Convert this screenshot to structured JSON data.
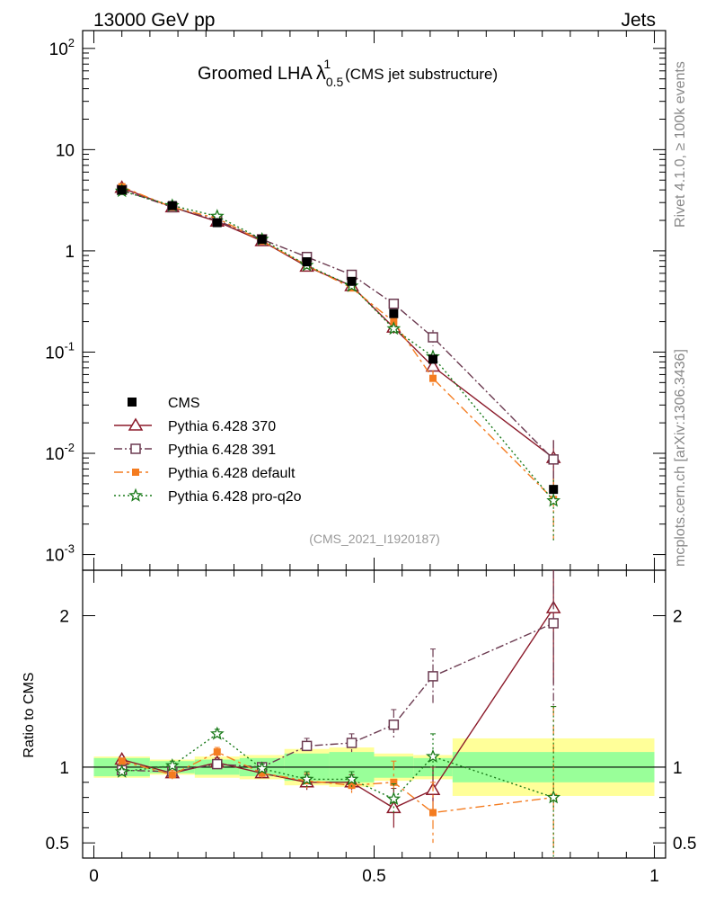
{
  "header": {
    "left": "13000 GeV pp",
    "right": "Jets"
  },
  "side_labels": {
    "top": "Rivet 4.1.0, ≥ 100k events",
    "bottom": "mcplots.cern.ch [arXiv:1306.3436]"
  },
  "chart_data": {
    "type": "scatter",
    "title": "Groomed LHA",
    "title_symbol": "λ",
    "title_sup": "1",
    "title_sub": "0.5",
    "title_suffix": "(CMS jet substructure)",
    "analysis_id": "(CMS_2021_I1920187)",
    "xlabel": "",
    "ylabel_main": "",
    "ylabel_ratio": "Ratio to CMS",
    "xlim": [
      -0.02,
      1.02
    ],
    "ylim_main": [
      0.0007,
      150
    ],
    "ylim_ratio": [
      0.4,
      2.3
    ],
    "x_ticks": [
      {
        "value": 0,
        "label": "0"
      },
      {
        "value": 0.5,
        "label": "0.5"
      },
      {
        "value": 1,
        "label": "1"
      }
    ],
    "y_ticks_main": [
      {
        "value": 0.001,
        "base": "10",
        "exp": "-3"
      },
      {
        "value": 0.01,
        "base": "10",
        "exp": "-2"
      },
      {
        "value": 0.1,
        "base": "10",
        "exp": "-1"
      },
      {
        "value": 1,
        "base": "1",
        "exp": ""
      },
      {
        "value": 10,
        "base": "10",
        "exp": ""
      },
      {
        "value": 100,
        "base": "10",
        "exp": "2"
      }
    ],
    "y_ticks_ratio": [
      {
        "value": 0.5,
        "label": "0.5"
      },
      {
        "value": 1,
        "label": "1"
      },
      {
        "value": 2,
        "label": "2"
      }
    ],
    "bins": [
      {
        "lo": 0.0,
        "hi": 0.1,
        "x": 0.05
      },
      {
        "lo": 0.1,
        "hi": 0.18,
        "x": 0.14
      },
      {
        "lo": 0.18,
        "hi": 0.26,
        "x": 0.22
      },
      {
        "lo": 0.26,
        "hi": 0.34,
        "x": 0.3
      },
      {
        "lo": 0.34,
        "hi": 0.42,
        "x": 0.38
      },
      {
        "lo": 0.42,
        "hi": 0.5,
        "x": 0.46
      },
      {
        "lo": 0.5,
        "hi": 0.57,
        "x": 0.535
      },
      {
        "lo": 0.57,
        "hi": 0.64,
        "x": 0.605
      },
      {
        "lo": 0.64,
        "hi": 1.0,
        "x": 0.82
      }
    ],
    "data": {
      "name": "CMS",
      "values": [
        4.0,
        2.8,
        1.9,
        1.3,
        0.78,
        0.5,
        0.24,
        0.085,
        0.0044
      ],
      "band_inner": [
        0.06,
        0.04,
        0.05,
        0.06,
        0.09,
        0.1,
        0.07,
        0.06,
        0.1
      ],
      "band_outer": [
        0.07,
        0.05,
        0.07,
        0.08,
        0.12,
        0.13,
        0.09,
        0.08,
        0.19
      ]
    },
    "series": [
      {
        "name": "Pythia 6.428 370",
        "color": "#8b1a2a",
        "dash": "",
        "marker": "triangle",
        "values": [
          4.2,
          2.7,
          1.95,
          1.25,
          0.7,
          0.45,
          0.175,
          0.072,
          0.009
        ],
        "ratio": [
          1.05,
          0.96,
          1.03,
          0.96,
          0.9,
          0.9,
          0.73,
          0.85,
          2.05
        ],
        "ratio_err": [
          0.02,
          0.03,
          0.03,
          0.03,
          0.05,
          0.05,
          0.13,
          0.15,
          0.5
        ]
      },
      {
        "name": "Pythia 6.428 391",
        "color": "#6b3a50",
        "dash": "9,3,2,3",
        "marker": "square",
        "values": [
          4.0,
          2.7,
          2.0,
          1.3,
          0.87,
          0.58,
          0.3,
          0.14,
          0.0087
        ],
        "ratio": [
          0.98,
          0.97,
          1.02,
          1.0,
          1.14,
          1.16,
          1.28,
          1.6,
          1.95
        ],
        "ratio_err": [
          0.02,
          0.03,
          0.03,
          0.03,
          0.05,
          0.06,
          0.1,
          0.18,
          0.55
        ]
      },
      {
        "name": "Pythia 6.428 default",
        "color": "#f47c20",
        "dash": "10,4,3,4",
        "marker": "filled-square",
        "values": [
          4.3,
          2.7,
          2.1,
          1.25,
          0.72,
          0.43,
          0.2,
          0.055,
          0.0035
        ],
        "ratio": [
          1.04,
          0.95,
          1.1,
          0.96,
          0.91,
          0.88,
          0.9,
          0.7,
          0.8
        ],
        "ratio_err": [
          0.02,
          0.03,
          0.03,
          0.03,
          0.05,
          0.05,
          0.14,
          0.2,
          0.6
        ]
      },
      {
        "name": "Pythia 6.428 pro-q2o",
        "color": "#1a7a1a",
        "dash": "2,3",
        "marker": "star",
        "values": [
          3.9,
          2.8,
          2.2,
          1.3,
          0.72,
          0.45,
          0.17,
          0.09,
          0.0034
        ],
        "ratio": [
          0.97,
          1.01,
          1.22,
          0.99,
          0.92,
          0.92,
          0.79,
          1.07,
          0.8
        ],
        "ratio_err": [
          0.02,
          0.03,
          0.03,
          0.03,
          0.05,
          0.05,
          0.1,
          0.15,
          0.6
        ]
      }
    ],
    "legend_position": "lower-left"
  }
}
